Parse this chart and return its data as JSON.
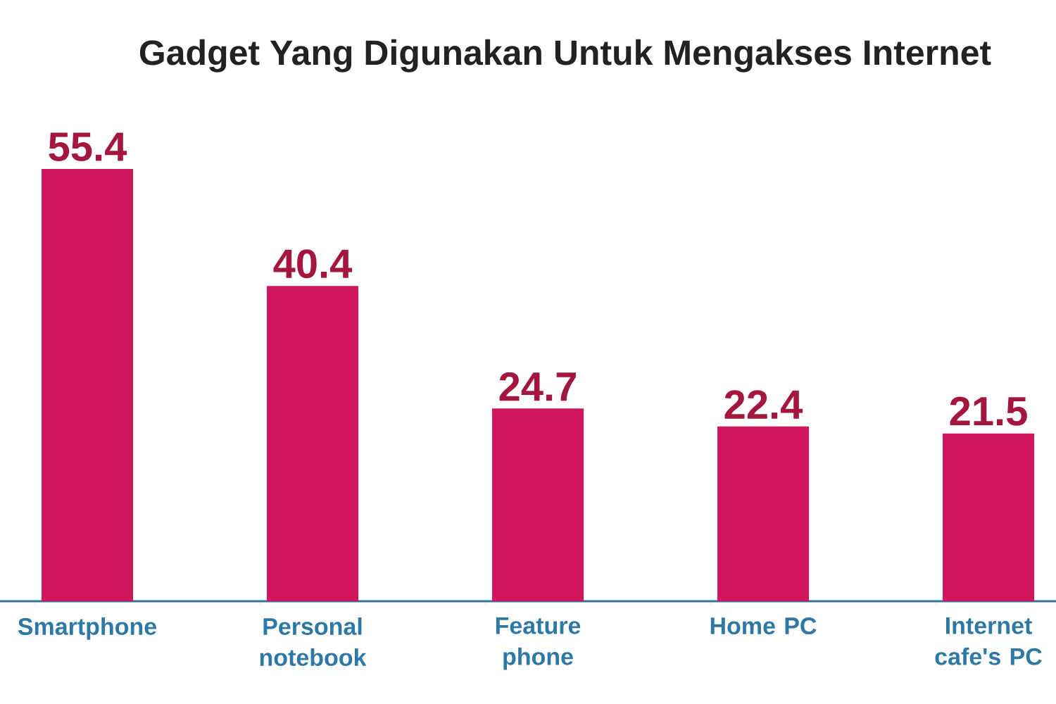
{
  "chart_data": {
    "type": "bar",
    "title": "Gadget Yang Digunakan Untuk Mengakses Internet",
    "categories": [
      "Smartphone",
      "Personal notebook",
      "Feature phone",
      "Home PC",
      "Internet cafe's PC"
    ],
    "values": [
      55.4,
      40.4,
      24.7,
      22.4,
      21.5
    ],
    "color": "#cf175e",
    "data_labels": true,
    "tick_labels": "x"
  }
}
